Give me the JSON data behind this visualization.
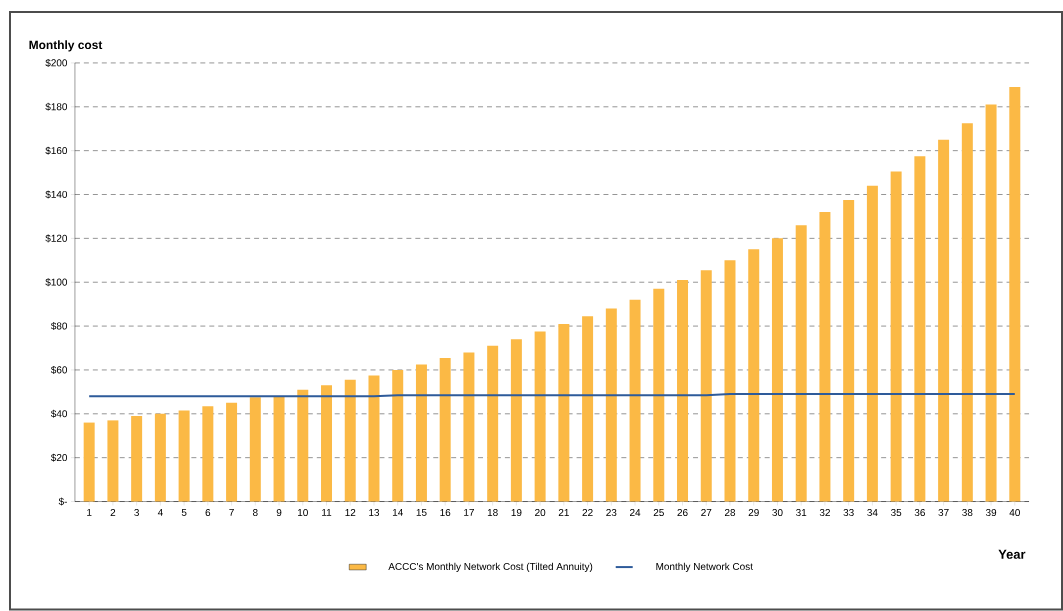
{
  "chart_data": {
    "type": "bar",
    "ylabel": "Monthly cost",
    "xlabel": "Year",
    "categories": [
      "1",
      "2",
      "3",
      "4",
      "5",
      "6",
      "7",
      "8",
      "9",
      "10",
      "11",
      "12",
      "13",
      "14",
      "15",
      "16",
      "17",
      "18",
      "19",
      "20",
      "21",
      "22",
      "23",
      "24",
      "25",
      "26",
      "27",
      "28",
      "29",
      "30",
      "31",
      "32",
      "33",
      "34",
      "35",
      "36",
      "37",
      "38",
      "39",
      "40"
    ],
    "series": [
      {
        "name": "ACCC's Monthly Network Cost (Tilted Annuity)",
        "color": "#fbb945",
        "values": [
          36,
          37,
          39,
          40,
          41.5,
          43.5,
          45,
          47.5,
          48,
          51,
          53,
          55.5,
          57.5,
          60,
          62.5,
          65.5,
          68,
          71,
          74,
          77.5,
          81,
          84.5,
          88,
          92,
          97,
          101,
          105.5,
          110,
          115,
          120,
          126,
          132,
          137.5,
          144,
          150.5,
          157.5,
          165,
          172.5,
          181,
          189
        ]
      },
      {
        "name": "Monthly Network Cost",
        "type": "line",
        "color": "#2e5b9a",
        "values": [
          48,
          48,
          48,
          48,
          48,
          48,
          48,
          48,
          48,
          48,
          48,
          48,
          48,
          48.5,
          48.5,
          48.5,
          48.5,
          48.5,
          48.5,
          48.5,
          48.5,
          48.5,
          48.5,
          48.5,
          48.5,
          48.5,
          48.5,
          49,
          49,
          49,
          49,
          49,
          49,
          49,
          49,
          49,
          49,
          49,
          49,
          49
        ]
      }
    ],
    "ylim": [
      0,
      200
    ],
    "yticks": [
      {
        "value": 0,
        "label": "$-"
      },
      {
        "value": 20,
        "label": "$20"
      },
      {
        "value": 40,
        "label": "$40"
      },
      {
        "value": 60,
        "label": "$60"
      },
      {
        "value": 80,
        "label": "$80"
      },
      {
        "value": 100,
        "label": "$100"
      },
      {
        "value": 120,
        "label": "$120"
      },
      {
        "value": 140,
        "label": "$140"
      },
      {
        "value": 160,
        "label": "$160"
      },
      {
        "value": 180,
        "label": "$180"
      },
      {
        "value": 200,
        "label": "$200"
      }
    ],
    "grid": "y",
    "legend": "bottom",
    "marker": "none",
    "line_style": "solid"
  }
}
